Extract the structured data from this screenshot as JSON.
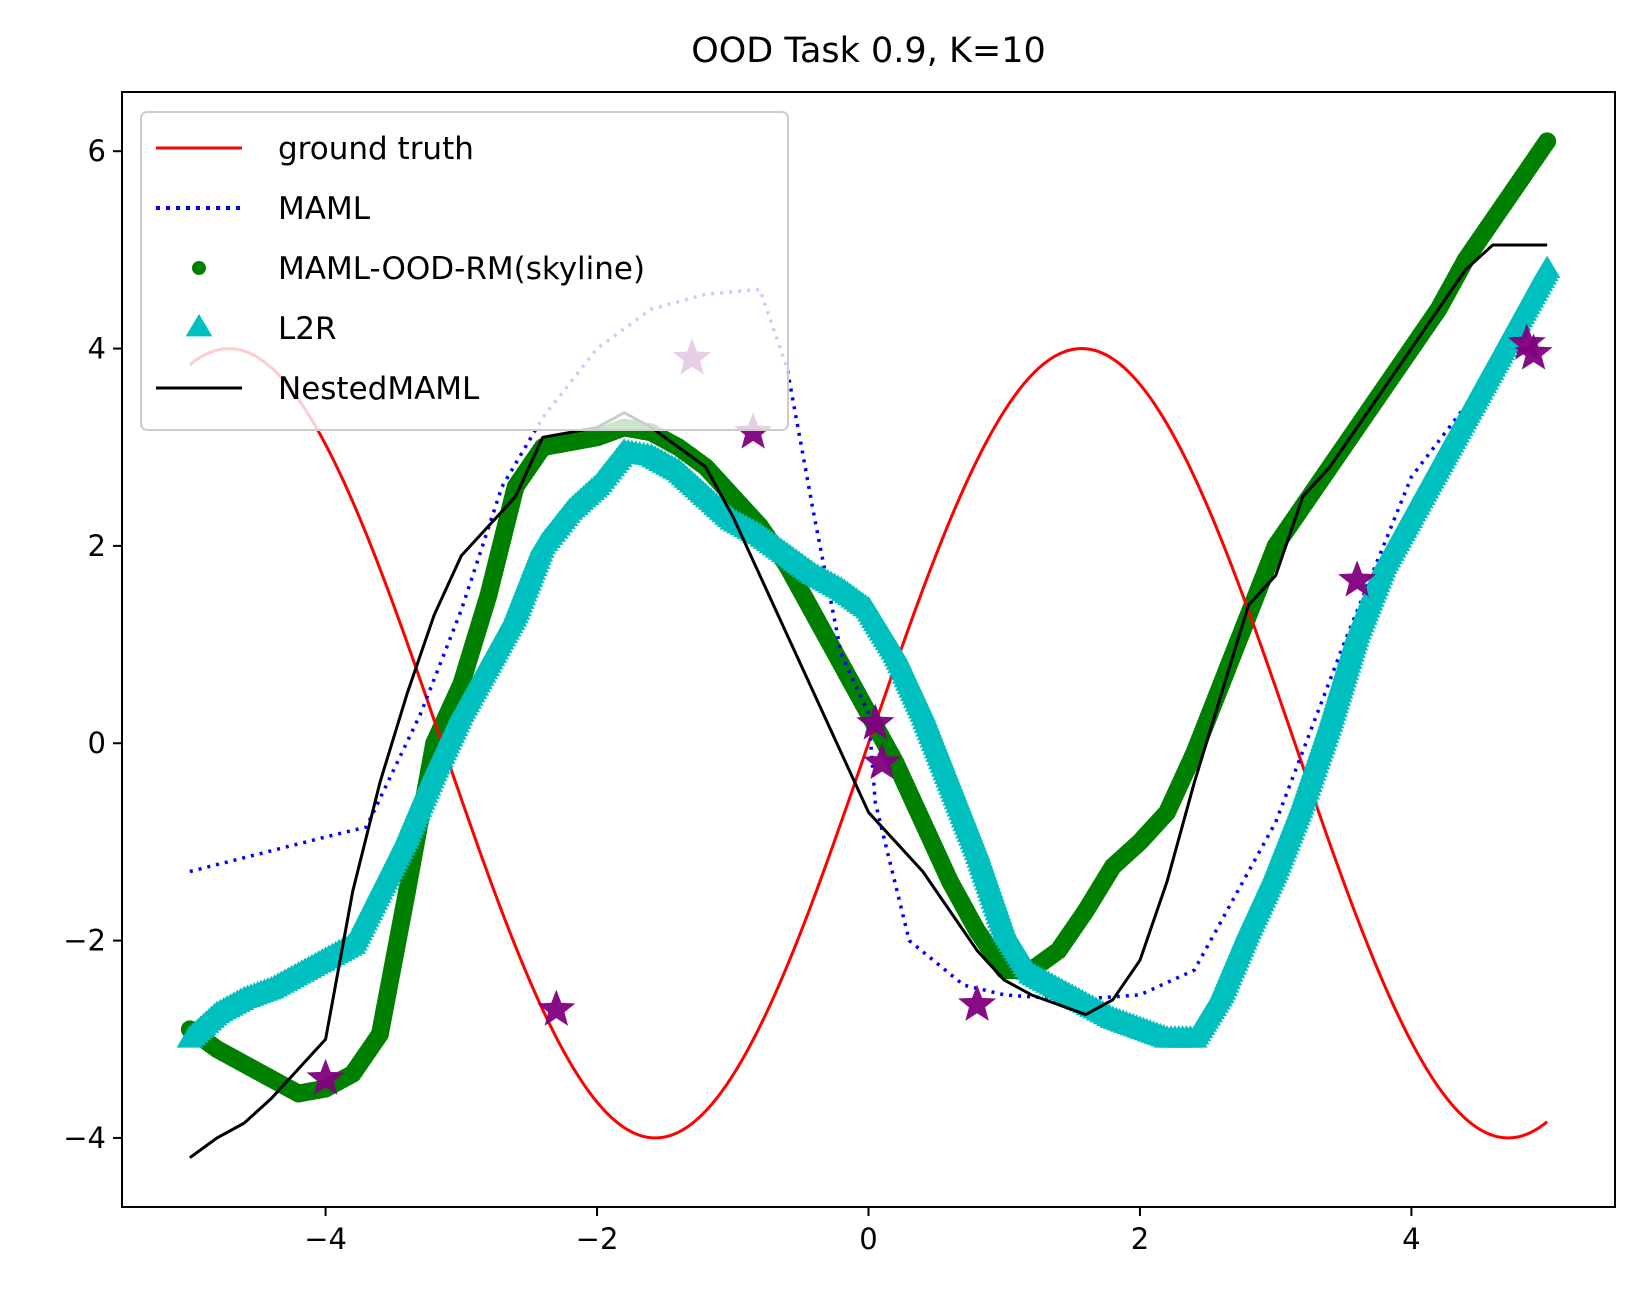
{
  "chart_data": {
    "type": "line",
    "title": "OOD Task 0.9, K=10",
    "xlabel": "",
    "ylabel": "",
    "xlim": [
      -5.5,
      5.5
    ],
    "ylim": [
      -4.7,
      6.6
    ],
    "x_ticks": [
      -4,
      -2,
      0,
      2,
      4
    ],
    "x_tick_labels": [
      "−4",
      "−2",
      "0",
      "2",
      "4"
    ],
    "y_ticks": [
      -4,
      -2,
      0,
      2,
      4,
      6
    ],
    "y_tick_labels": [
      "−4",
      "−2",
      "0",
      "2",
      "4",
      "6"
    ],
    "grid": false,
    "legend_position": "upper-left",
    "series": [
      {
        "name": "ground truth",
        "style": "solid",
        "color": "#ff0000",
        "function": {
          "kind": "sine",
          "amplitude": 4.0,
          "frequency": 1.0,
          "phase": 0.0,
          "x_from": -5.0,
          "x_to": 5.0
        }
      },
      {
        "name": "MAML",
        "style": "dotted",
        "color": "#0000ff",
        "x": [
          -5.0,
          -4.0,
          -3.7,
          -3.3,
          -3.0,
          -2.7,
          -2.4,
          -2.0,
          -1.6,
          -1.2,
          -0.8,
          -0.6,
          -0.4,
          -0.2,
          0.0,
          0.05,
          0.3,
          0.7,
          1.0,
          1.5,
          2.0,
          2.4,
          3.0,
          3.5,
          4.0,
          4.5,
          5.0
        ],
        "y": [
          -1.3,
          -0.95,
          -0.85,
          0.3,
          1.35,
          2.6,
          3.3,
          4.0,
          4.4,
          4.55,
          4.6,
          3.8,
          2.3,
          0.9,
          0.3,
          -0.6,
          -2.0,
          -2.45,
          -2.55,
          -2.6,
          -2.55,
          -2.3,
          -0.8,
          1.0,
          2.7,
          3.6,
          4.7
        ]
      },
      {
        "name": "MAML-OOD-RM(skyline)",
        "style": "markers",
        "marker": "circle",
        "color": "#008000",
        "x": [
          -5.0,
          -4.8,
          -4.6,
          -4.4,
          -4.2,
          -4.0,
          -3.8,
          -3.6,
          -3.4,
          -3.2,
          -3.0,
          -2.8,
          -2.6,
          -2.4,
          -2.2,
          -2.0,
          -1.8,
          -1.6,
          -1.4,
          -1.2,
          -1.0,
          -0.8,
          -0.6,
          -0.4,
          -0.2,
          0.0,
          0.2,
          0.4,
          0.6,
          0.8,
          1.0,
          1.2,
          1.4,
          1.6,
          1.8,
          2.0,
          2.2,
          2.4,
          2.6,
          2.8,
          3.0,
          3.2,
          3.4,
          3.6,
          3.8,
          4.0,
          4.2,
          4.4,
          4.6,
          4.8,
          5.0
        ],
        "y": [
          -2.9,
          -3.1,
          -3.25,
          -3.4,
          -3.55,
          -3.5,
          -3.35,
          -2.95,
          -1.5,
          0.0,
          0.6,
          1.5,
          2.6,
          3.0,
          3.05,
          3.1,
          3.2,
          3.15,
          3.0,
          2.8,
          2.5,
          2.2,
          1.8,
          1.3,
          0.8,
          0.3,
          -0.2,
          -0.8,
          -1.4,
          -1.9,
          -2.3,
          -2.3,
          -2.1,
          -1.7,
          -1.25,
          -1.0,
          -0.7,
          -0.1,
          0.6,
          1.3,
          2.0,
          2.4,
          2.8,
          3.2,
          3.6,
          4.0,
          4.4,
          4.9,
          5.3,
          5.7,
          6.1
        ]
      },
      {
        "name": "L2R",
        "style": "markers",
        "marker": "triangle",
        "color": "#00bfbf",
        "x": [
          -5.0,
          -4.8,
          -4.6,
          -4.4,
          -4.2,
          -4.0,
          -3.8,
          -3.6,
          -3.4,
          -3.2,
          -3.0,
          -2.8,
          -2.6,
          -2.4,
          -2.2,
          -2.0,
          -1.8,
          -1.6,
          -1.4,
          -1.2,
          -1.0,
          -0.8,
          -0.6,
          -0.4,
          -0.2,
          0.0,
          0.2,
          0.4,
          0.6,
          0.8,
          1.0,
          1.2,
          1.4,
          1.6,
          1.8,
          2.0,
          2.2,
          2.4,
          2.6,
          2.8,
          3.0,
          3.2,
          3.4,
          3.6,
          3.8,
          4.0,
          4.2,
          4.4,
          4.6,
          4.8,
          5.0
        ],
        "y": [
          -3.0,
          -2.75,
          -2.6,
          -2.5,
          -2.35,
          -2.2,
          -2.05,
          -1.5,
          -0.95,
          -0.3,
          0.3,
          0.8,
          1.3,
          2.0,
          2.35,
          2.6,
          2.95,
          2.9,
          2.75,
          2.5,
          2.25,
          2.1,
          1.9,
          1.7,
          1.55,
          1.35,
          0.9,
          0.3,
          -0.4,
          -1.1,
          -1.9,
          -2.35,
          -2.5,
          -2.65,
          -2.8,
          -2.9,
          -3.0,
          -3.0,
          -2.55,
          -1.9,
          -1.3,
          -0.6,
          0.2,
          1.1,
          1.8,
          2.3,
          2.8,
          3.3,
          3.8,
          4.3,
          4.8
        ]
      },
      {
        "name": "NestedMAML",
        "style": "solid",
        "color": "#000000",
        "x": [
          -5.0,
          -4.8,
          -4.6,
          -4.4,
          -4.2,
          -4.0,
          -3.8,
          -3.6,
          -3.4,
          -3.2,
          -3.0,
          -2.8,
          -2.6,
          -2.4,
          -2.2,
          -2.0,
          -1.8,
          -1.6,
          -1.4,
          -1.2,
          -1.0,
          -0.8,
          -0.6,
          -0.4,
          -0.2,
          0.0,
          0.2,
          0.4,
          0.6,
          0.8,
          1.0,
          1.2,
          1.4,
          1.6,
          1.8,
          2.0,
          2.2,
          2.4,
          2.6,
          2.8,
          3.0,
          3.2,
          3.4,
          3.6,
          3.8,
          4.0,
          4.2,
          4.4,
          4.6,
          4.8,
          5.0
        ],
        "y": [
          -4.2,
          -4.0,
          -3.85,
          -3.6,
          -3.3,
          -3.0,
          -1.5,
          -0.4,
          0.5,
          1.3,
          1.9,
          2.2,
          2.5,
          3.1,
          3.15,
          3.2,
          3.35,
          3.2,
          3.0,
          2.8,
          2.3,
          1.7,
          1.1,
          0.5,
          -0.1,
          -0.7,
          -1.0,
          -1.3,
          -1.7,
          -2.1,
          -2.4,
          -2.55,
          -2.65,
          -2.75,
          -2.6,
          -2.2,
          -1.4,
          -0.4,
          0.5,
          1.4,
          1.7,
          2.5,
          2.8,
          3.2,
          3.6,
          4.0,
          4.4,
          4.8,
          5.05,
          5.05,
          5.05
        ]
      }
    ],
    "support_points": {
      "marker": "star",
      "color": "#800080",
      "x": [
        -4.0,
        -2.3,
        -1.3,
        -0.85,
        0.05,
        0.1,
        0.8,
        3.6,
        4.85,
        4.9
      ],
      "y": [
        -3.4,
        -2.7,
        3.9,
        3.15,
        0.2,
        -0.2,
        -2.65,
        1.65,
        4.05,
        3.95
      ]
    },
    "legend_entries": [
      {
        "label": "ground truth",
        "swatch": "solid",
        "color": "#ff0000"
      },
      {
        "label": "MAML",
        "swatch": "dotted",
        "color": "#0000ff"
      },
      {
        "label": "MAML-OOD-RM(skyline)",
        "swatch": "circle",
        "color": "#008000"
      },
      {
        "label": "L2R",
        "swatch": "triangle",
        "color": "#00bfbf"
      },
      {
        "label": "NestedMAML",
        "swatch": "solid",
        "color": "#000000"
      }
    ]
  }
}
